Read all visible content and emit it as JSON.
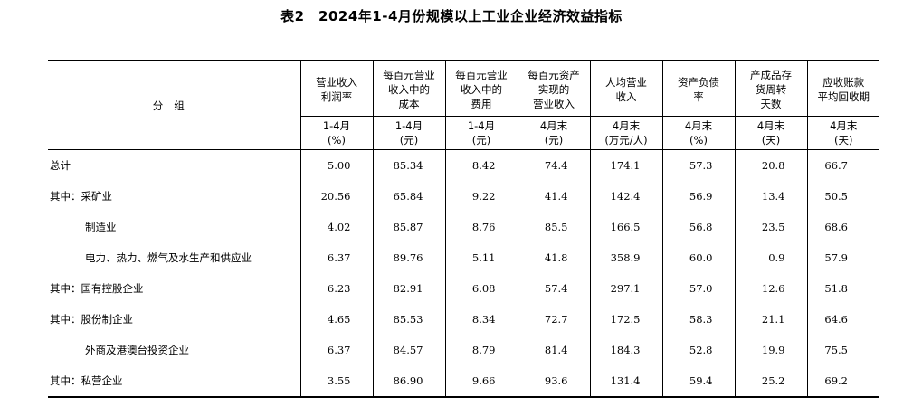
{
  "title": "表2　2024年1-4月份规模以上工业企业经济效益指标",
  "group_header": "分组",
  "columns": [
    {
      "header_lines": [
        "营业收入",
        "利润率"
      ],
      "period": "1-4月",
      "unit": "(%)"
    },
    {
      "header_lines": [
        "每百元营业",
        "收入中的",
        "成本"
      ],
      "period": "1-4月",
      "unit": "(元)"
    },
    {
      "header_lines": [
        "每百元营业",
        "收入中的",
        "费用"
      ],
      "period": "1-4月",
      "unit": "(元)"
    },
    {
      "header_lines": [
        "每百元资产",
        "实现的",
        "营业收入"
      ],
      "period": "4月末",
      "unit": "(元)"
    },
    {
      "header_lines": [
        "人均营业",
        "收入"
      ],
      "period": "4月末",
      "unit": "(万元/人)"
    },
    {
      "header_lines": [
        "资产负债",
        "率"
      ],
      "period": "4月末",
      "unit": "(%)"
    },
    {
      "header_lines": [
        "产成品存",
        "货周转",
        "天数"
      ],
      "period": "4月末",
      "unit": "(天)"
    },
    {
      "header_lines": [
        "应收账款",
        "平均回收期"
      ],
      "period": "4月末",
      "unit": "(天)"
    }
  ],
  "rows": [
    {
      "label": "总计",
      "indent": false,
      "values": [
        "5.00",
        "85.34",
        "8.42",
        "74.4",
        "174.1",
        "57.3",
        "20.8",
        "66.7"
      ]
    },
    {
      "label": "其中：采矿业",
      "indent": false,
      "values": [
        "20.56",
        "65.84",
        "9.22",
        "41.4",
        "142.4",
        "56.9",
        "13.4",
        "50.5"
      ]
    },
    {
      "label": "制造业",
      "indent": true,
      "values": [
        "4.02",
        "85.87",
        "8.76",
        "85.5",
        "166.5",
        "56.8",
        "23.5",
        "68.6"
      ]
    },
    {
      "label": "电力、热力、燃气及水生产和供应业",
      "indent": true,
      "values": [
        "6.37",
        "89.76",
        "5.11",
        "41.8",
        "358.9",
        "60.0",
        "0.9",
        "57.9"
      ]
    },
    {
      "label": "其中：国有控股企业",
      "indent": false,
      "values": [
        "6.23",
        "82.91",
        "6.08",
        "57.4",
        "297.1",
        "57.0",
        "12.6",
        "51.8"
      ]
    },
    {
      "label": "其中：股份制企业",
      "indent": false,
      "values": [
        "4.65",
        "85.53",
        "8.34",
        "72.7",
        "172.5",
        "58.3",
        "21.1",
        "64.6"
      ]
    },
    {
      "label": "外商及港澳台投资企业",
      "indent": true,
      "values": [
        "6.37",
        "84.57",
        "8.79",
        "81.4",
        "184.3",
        "52.8",
        "19.9",
        "75.5"
      ]
    },
    {
      "label": "其中：私营企业",
      "indent": false,
      "values": [
        "3.55",
        "86.90",
        "9.66",
        "93.6",
        "131.4",
        "59.4",
        "25.2",
        "69.2"
      ]
    }
  ]
}
